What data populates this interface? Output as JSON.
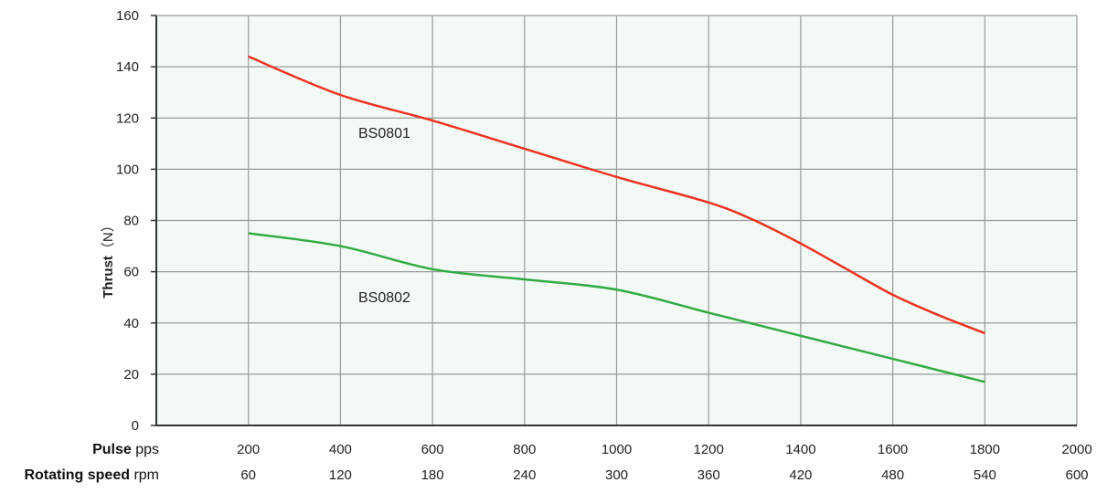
{
  "chart_data": {
    "type": "line",
    "ylabel_bold": "Thrust",
    "ylabel_unit": "（N）",
    "ylim": [
      0,
      160
    ],
    "yticks": [
      "0",
      "20",
      "40",
      "60",
      "80",
      "100",
      "120",
      "140",
      "160"
    ],
    "grid": true,
    "x_rows": [
      {
        "name_bold": "Pulse",
        "unit": "pps",
        "ticks": [
          "200",
          "400",
          "600",
          "800",
          "1000",
          "1200",
          "1400",
          "1600",
          "1800",
          "2000"
        ]
      },
      {
        "name_bold": "Rotating speed",
        "unit": "rpm",
        "ticks": [
          "60",
          "120",
          "180",
          "240",
          "300",
          "360",
          "420",
          "480",
          "540",
          "600"
        ]
      }
    ],
    "xlim": [
      0,
      2000
    ],
    "series": [
      {
        "name": "BS0801",
        "color": "#ee3322",
        "x": [
          200,
          400,
          600,
          800,
          1000,
          1200,
          1300,
          1400,
          1500,
          1600,
          1700,
          1800
        ],
        "y": [
          144,
          129,
          119,
          108,
          97,
          87,
          80,
          71,
          61,
          51,
          43,
          36
        ]
      },
      {
        "name": "BS0802",
        "color": "#33aa44",
        "x": [
          200,
          400,
          600,
          800,
          1000,
          1200,
          1400,
          1600,
          1800
        ],
        "y": [
          75,
          70,
          61,
          57,
          53,
          44,
          35,
          26,
          17
        ]
      }
    ]
  }
}
